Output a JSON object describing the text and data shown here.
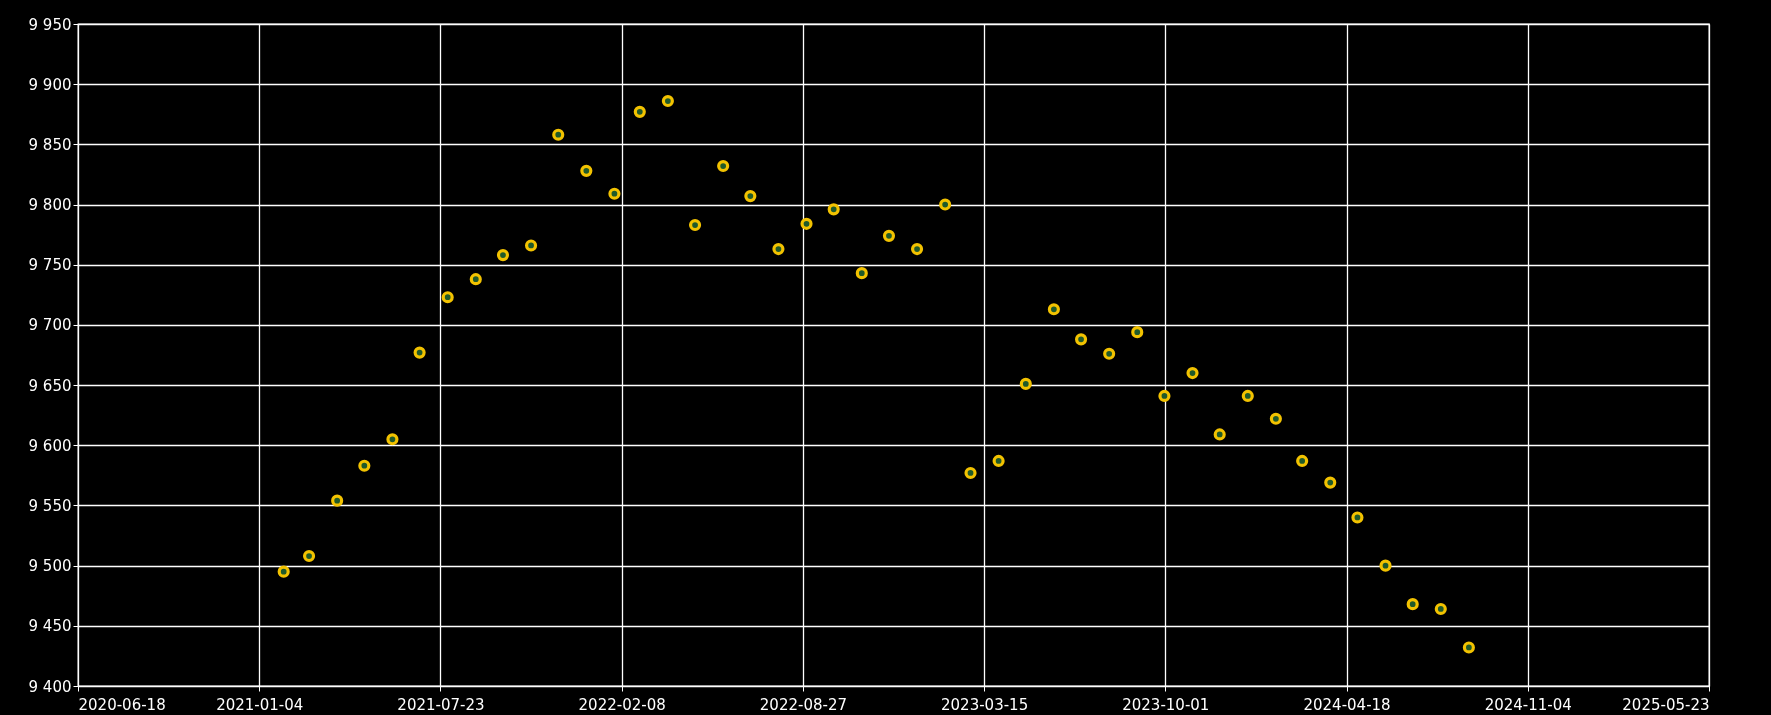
{
  "chart_data": {
    "type": "scatter",
    "marker": "circle",
    "grid": true,
    "x": [
      "2021-01-31",
      "2021-02-28",
      "2021-03-31",
      "2021-04-30",
      "2021-05-31",
      "2021-06-30",
      "2021-07-31",
      "2021-08-31",
      "2021-09-30",
      "2021-10-31",
      "2021-11-30",
      "2021-12-31",
      "2022-01-31",
      "2022-02-28",
      "2022-03-31",
      "2022-04-30",
      "2022-05-31",
      "2022-06-30",
      "2022-07-31",
      "2022-08-31",
      "2022-09-30",
      "2022-10-31",
      "2022-11-30",
      "2022-12-31",
      "2023-01-31",
      "2023-02-28",
      "2023-03-31",
      "2023-04-30",
      "2023-05-31",
      "2023-06-30",
      "2023-07-31",
      "2023-08-31",
      "2023-09-30",
      "2023-10-31",
      "2023-11-30",
      "2023-12-31",
      "2024-01-31",
      "2024-02-29",
      "2024-03-31",
      "2024-04-30",
      "2024-05-31",
      "2024-06-30",
      "2024-07-31",
      "2024-08-31"
    ],
    "series": [
      {
        "color": "#f2c200",
        "values": [
          9495,
          9508,
          9554,
          9583,
          9605,
          9677,
          9723,
          9738,
          9758,
          9766,
          9858,
          9828,
          9809,
          9877,
          9886,
          9783,
          9832,
          9807,
          9763,
          9784,
          9796,
          9743,
          9774,
          9763,
          9800,
          9577,
          9587,
          9651,
          9713,
          9688,
          9676,
          9694,
          9641,
          9660,
          9609,
          9641,
          9622,
          9587,
          9569,
          9540,
          9500,
          9468,
          9464,
          9432
        ]
      }
    ],
    "xlim": [
      "2020-06-18",
      "2025-05-23"
    ],
    "xticks": [
      "2020-06-18",
      "2021-01-04",
      "2021-07-23",
      "2022-02-08",
      "2022-08-27",
      "2023-03-15",
      "2023-10-01",
      "2024-04-18",
      "2024-11-04",
      "2025-05-23"
    ],
    "ylim": [
      9400,
      9950
    ],
    "yticks": [
      {
        "value": 9400,
        "label": "9 400"
      },
      {
        "value": 9450,
        "label": "9 450"
      },
      {
        "value": 9500,
        "label": "9 500"
      },
      {
        "value": 9550,
        "label": "9 550"
      },
      {
        "value": 9600,
        "label": "9 600"
      },
      {
        "value": 9650,
        "label": "9 650"
      },
      {
        "value": 9700,
        "label": "9 700"
      },
      {
        "value": 9750,
        "label": "9 750"
      },
      {
        "value": 9800,
        "label": "9 800"
      },
      {
        "value": 9850,
        "label": "9 850"
      },
      {
        "value": 9900,
        "label": "9 900"
      },
      {
        "value": 9950,
        "label": "9 950"
      }
    ]
  }
}
